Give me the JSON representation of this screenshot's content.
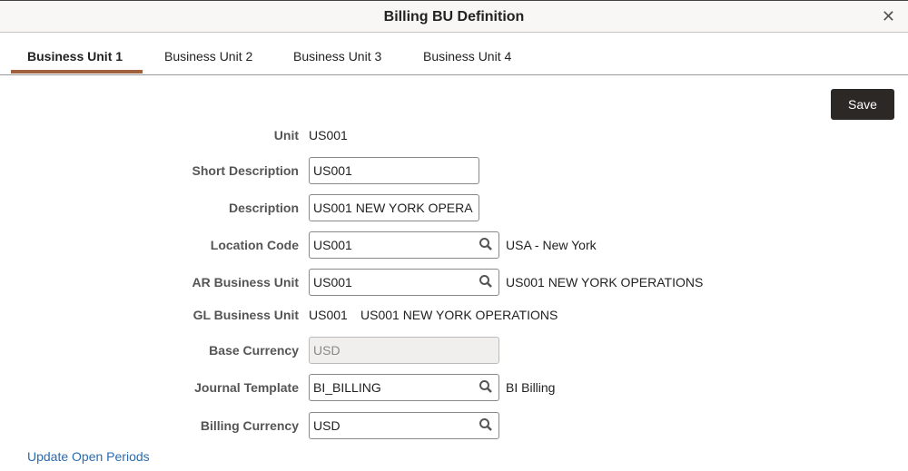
{
  "dialog": {
    "title": "Billing BU Definition",
    "close_icon": "close-icon"
  },
  "tabs": [
    {
      "label": "Business Unit 1",
      "active": true
    },
    {
      "label": "Business Unit 2"
    },
    {
      "label": "Business Unit 3"
    },
    {
      "label": "Business Unit 4"
    }
  ],
  "save_label": "Save",
  "fields": {
    "unit": {
      "label": "Unit",
      "value": "US001"
    },
    "short_desc": {
      "label": "Short Description",
      "value": "US001"
    },
    "desc": {
      "label": "Description",
      "value": "US001 NEW YORK OPERA"
    },
    "location": {
      "label": "Location Code",
      "value": "US001",
      "description": "USA - New York"
    },
    "ar_bu": {
      "label": "AR Business Unit",
      "value": "US001",
      "description": "US001 NEW YORK OPERATIONS"
    },
    "gl_bu": {
      "label": "GL Business Unit",
      "value": "US001",
      "description": "US001 NEW YORK OPERATIONS"
    },
    "base_currency": {
      "label": "Base Currency",
      "value": "USD"
    },
    "journal": {
      "label": "Journal Template",
      "value": "BI_BILLING",
      "description": "BI Billing"
    },
    "billing_currency": {
      "label": "Billing Currency",
      "value": "USD"
    }
  },
  "link": "Update Open Periods"
}
